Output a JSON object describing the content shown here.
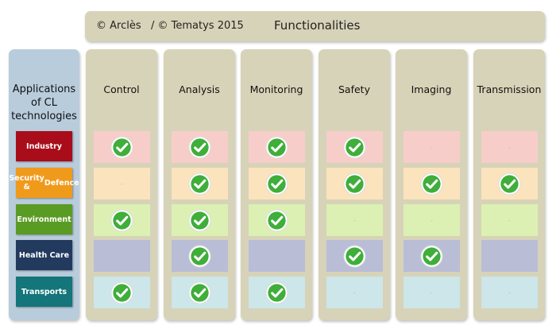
{
  "header": {
    "copyright": "© Arclès   / © Tematys 2015",
    "title": "Functionalities"
  },
  "left_panel": {
    "title_lines": [
      "Applications",
      "of CL",
      "technologies"
    ]
  },
  "applications": [
    {
      "label_lines": [
        "Industry"
      ],
      "color": "#a90d1a"
    },
    {
      "label_lines": [
        "Security &",
        "Defence"
      ],
      "color": "#f09a1c"
    },
    {
      "label_lines": [
        "Environment"
      ],
      "color": "#5a9b24"
    },
    {
      "label_lines": [
        "Health Care"
      ],
      "color": "#223a5e"
    },
    {
      "label_lines": [
        "Transports"
      ],
      "color": "#14757a"
    }
  ],
  "row_colors": [
    "#f7cdca",
    "#fbe3bd",
    "#dcf0b4",
    "#b9bdd6",
    "#cce6e9"
  ],
  "functionalities": [
    "Control",
    "Analysis",
    "Monitoring",
    "Safety",
    "Imaging",
    "Transmission"
  ],
  "matrix": [
    [
      true,
      true,
      true,
      true,
      false,
      false
    ],
    [
      false,
      true,
      true,
      true,
      true,
      true
    ],
    [
      true,
      true,
      true,
      false,
      false,
      false
    ],
    [
      false,
      true,
      false,
      true,
      true,
      false
    ],
    [
      true,
      true,
      true,
      false,
      false,
      false
    ]
  ],
  "empty_mark": "-",
  "icons": {
    "check": "check-circle-icon"
  },
  "colors": {
    "check_green": "#3fae3a",
    "panel": "#d7d3b8",
    "left_panel": "#b8ccdc"
  }
}
